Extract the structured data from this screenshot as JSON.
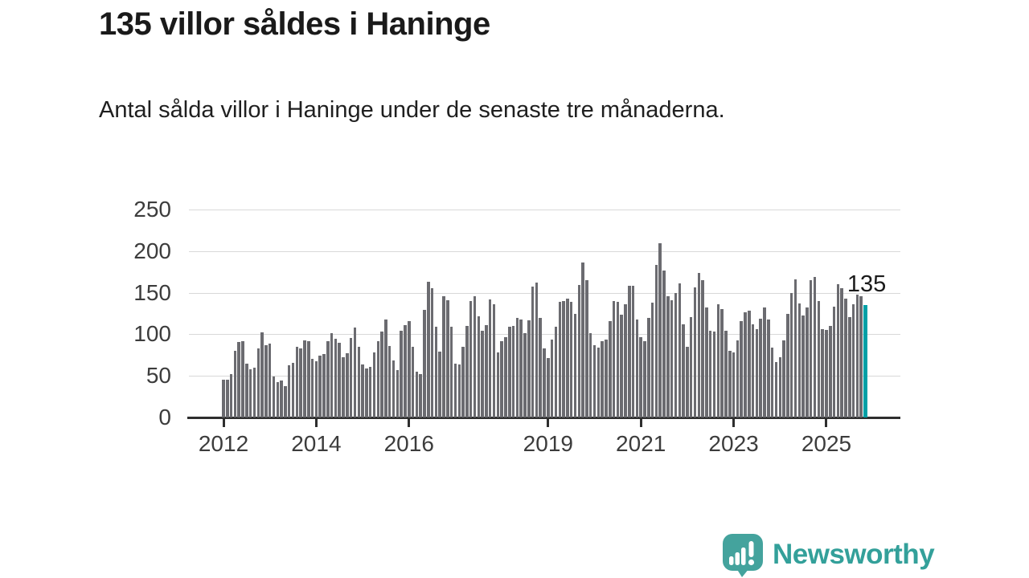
{
  "title": "135 villor såldes i Haninge",
  "subtitle": "Antal sålda villor i Haninge under de senaste tre månaderna.",
  "annotation": {
    "value_label": "135"
  },
  "logo": {
    "brand": "Newsworthy",
    "icon": "newsworthy-speech-bubble-chart-icon"
  },
  "colors": {
    "bar": "#6b6b70",
    "bar_highlight": "#00a0a6",
    "grid": "#d8d8d8",
    "axis": "#2e2e2e",
    "text": "#1a1a1a",
    "axis_text": "#3c3c3c",
    "brand_teal": "#33a09a"
  },
  "chart_data": {
    "type": "bar",
    "title": "135 villor såldes i Haninge",
    "subtitle": "Antal sålda villor i Haninge under de senaste tre månaderna.",
    "unit": "sålda villor (rullande 3 månader)",
    "start_year": 2012,
    "start_month": "2012-01",
    "end_month": "2025-11",
    "ylim": [
      0,
      250
    ],
    "y_ticks": [
      0,
      50,
      100,
      150,
      200,
      250
    ],
    "x_tick_years": [
      2012,
      2014,
      2016,
      2019,
      2021,
      2023,
      2025
    ],
    "grid": true,
    "legend": "none",
    "values": [
      45,
      45,
      52,
      80,
      91,
      92,
      65,
      58,
      60,
      83,
      102,
      87,
      89,
      49,
      42,
      44,
      38,
      63,
      66,
      85,
      83,
      93,
      92,
      70,
      68,
      74,
      76,
      92,
      101,
      95,
      90,
      72,
      77,
      96,
      108,
      85,
      64,
      59,
      61,
      78,
      92,
      103,
      118,
      86,
      69,
      57,
      104,
      111,
      116,
      85,
      55,
      52,
      129,
      163,
      155,
      109,
      79,
      146,
      141,
      109,
      65,
      64,
      85,
      110,
      140,
      146,
      122,
      104,
      111,
      142,
      136,
      78,
      92,
      97,
      109,
      110,
      120,
      118,
      101,
      117,
      157,
      162,
      120,
      83,
      71,
      94,
      109,
      139,
      140,
      143,
      139,
      125,
      159,
      186,
      165,
      101,
      87,
      84,
      92,
      94,
      116,
      140,
      139,
      124,
      136,
      158,
      158,
      118,
      97,
      92,
      120,
      138,
      183,
      209,
      177,
      146,
      141,
      150,
      161,
      112,
      85,
      121,
      156,
      174,
      165,
      132,
      104,
      103,
      136,
      130,
      104,
      80,
      78,
      93,
      116,
      126,
      128,
      112,
      106,
      119,
      132,
      118,
      84,
      67,
      72,
      93,
      125,
      150,
      166,
      137,
      123,
      132,
      165,
      169,
      140,
      106,
      105,
      110,
      133,
      160,
      155,
      143,
      121,
      136,
      148,
      146,
      135
    ],
    "highlight": {
      "index": 166,
      "value": 135,
      "label": "135",
      "color": "#00a0a6"
    }
  }
}
